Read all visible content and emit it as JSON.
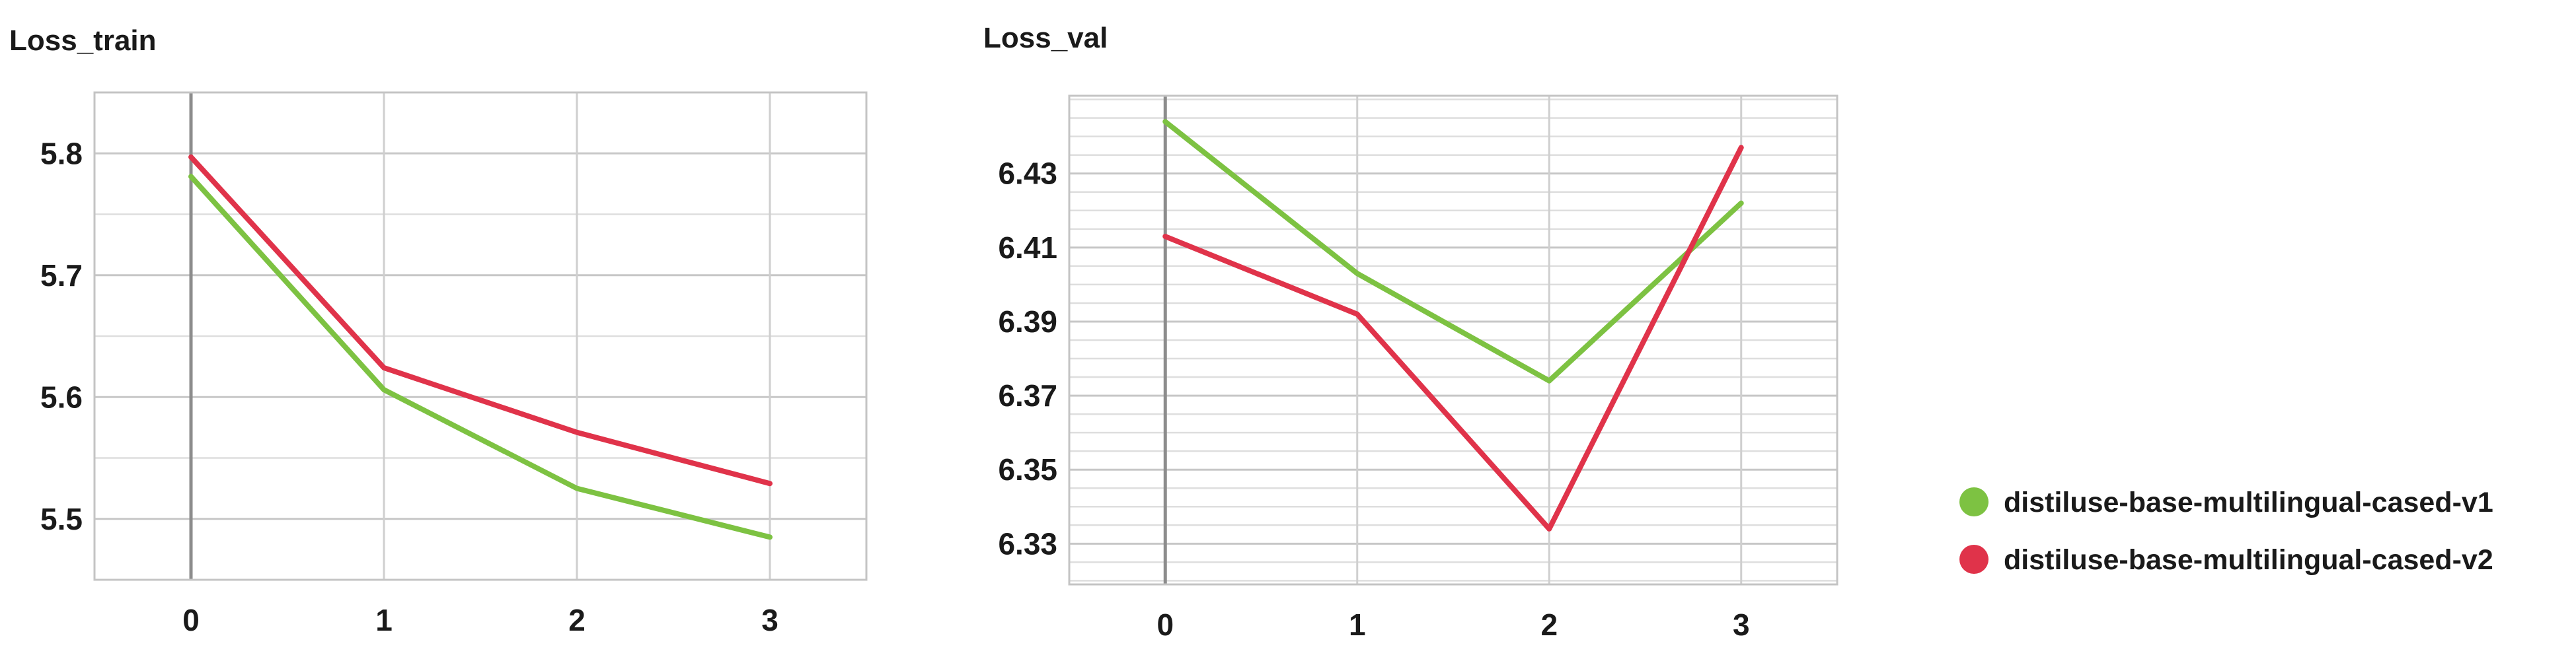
{
  "colors": {
    "v1": "#7dc242",
    "v2": "#e0334a"
  },
  "legend": [
    {
      "label": "distiluse-base-multilingual-cased-v1",
      "color": "#7dc242"
    },
    {
      "label": "distiluse-base-multilingual-cased-v2",
      "color": "#e0334a"
    }
  ],
  "chart_data": [
    {
      "type": "line",
      "title": "Loss_train",
      "xlabel": "",
      "ylabel": "",
      "x": [
        0,
        1,
        2,
        3
      ],
      "xlim": [
        -0.5,
        3.5
      ],
      "ylim": [
        5.45,
        5.85
      ],
      "x_ticks": [
        "0",
        "1",
        "2",
        "3"
      ],
      "y_ticks": [
        "5.5",
        "5.6",
        "5.7",
        "5.8"
      ],
      "y_tick_values": [
        5.5,
        5.6,
        5.7,
        5.8
      ],
      "grid": true,
      "series": [
        {
          "name": "distiluse-base-multilingual-cased-v1",
          "color": "#7dc242",
          "values": [
            5.781,
            5.606,
            5.525,
            5.485
          ]
        },
        {
          "name": "distiluse-base-multilingual-cased-v2",
          "color": "#e0334a",
          "values": [
            5.797,
            5.624,
            5.571,
            5.529
          ]
        }
      ]
    },
    {
      "type": "line",
      "title": "Loss_val",
      "xlabel": "",
      "ylabel": "",
      "x": [
        0,
        1,
        2,
        3
      ],
      "xlim": [
        -0.5,
        3.5
      ],
      "ylim": [
        6.319,
        6.451
      ],
      "x_ticks": [
        "0",
        "1",
        "2",
        "3"
      ],
      "y_ticks": [
        "6.33",
        "6.35",
        "6.37",
        "6.39",
        "6.41",
        "6.43"
      ],
      "y_tick_values": [
        6.33,
        6.35,
        6.37,
        6.39,
        6.41,
        6.43
      ],
      "grid": true,
      "series": [
        {
          "name": "distiluse-base-multilingual-cased-v1",
          "color": "#7dc242",
          "values": [
            6.444,
            6.403,
            6.374,
            6.422
          ]
        },
        {
          "name": "distiluse-base-multilingual-cased-v2",
          "color": "#e0334a",
          "values": [
            6.413,
            6.392,
            6.334,
            6.437
          ]
        }
      ]
    }
  ]
}
